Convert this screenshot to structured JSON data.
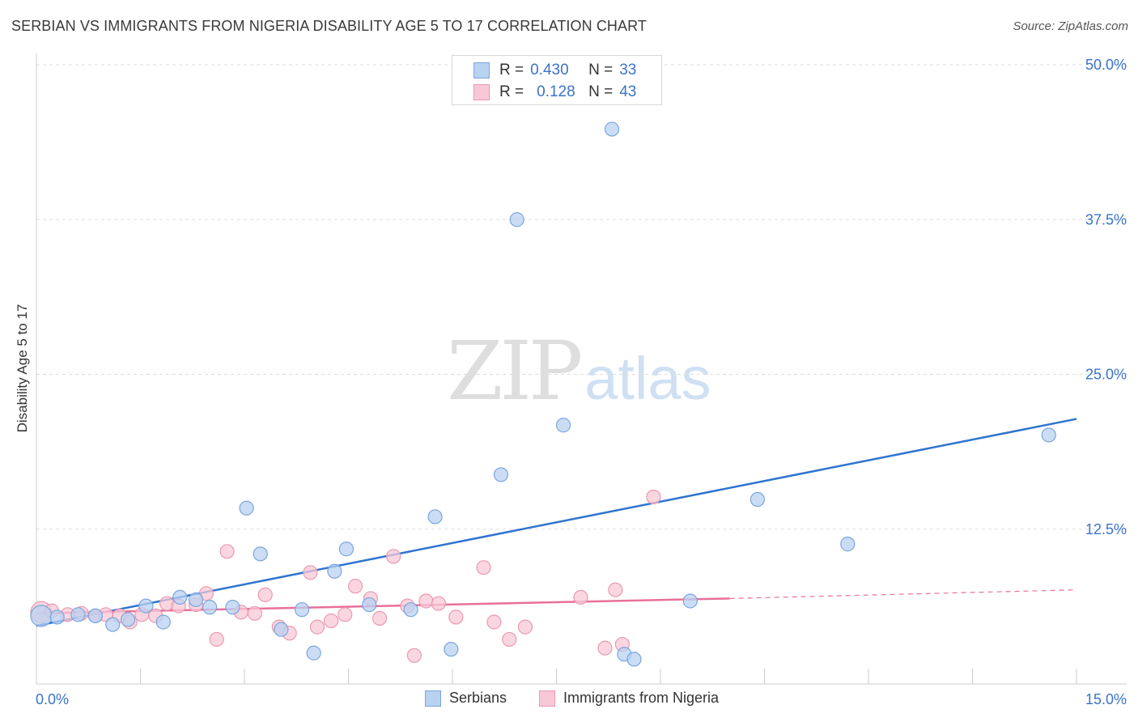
{
  "title": "SERBIAN VS IMMIGRANTS FROM NIGERIA DISABILITY AGE 5 TO 17 CORRELATION CHART",
  "source": "Source: ZipAtlas.com",
  "watermark": {
    "part1": "ZIP",
    "part2": "atlas"
  },
  "legend_top": [
    {
      "r_label": "R =",
      "r_value": "0.430",
      "n_label": "N =",
      "n_value": "33"
    },
    {
      "r_label": "R =",
      "r_value": "0.128",
      "n_label": "N =",
      "n_value": "43"
    }
  ],
  "colors": {
    "serbians_fill": "#b9d2f2",
    "serbians_stroke": "#7aa6de",
    "serbians_line": "#2f74d0",
    "nigeria_fill": "#f8c8d6",
    "nigeria_stroke": "#ea9ab2",
    "nigeria_line": "#e8709a",
    "axis_value": "#3a73c9"
  },
  "chart_data": {
    "type": "scatter",
    "title": "SERBIAN VS IMMIGRANTS FROM NIGERIA DISABILITY AGE 5 TO 17 CORRELATION CHART",
    "xlabel": "",
    "ylabel": "Disability Age 5 to 17",
    "xlim": [
      0,
      15
    ],
    "ylim": [
      0,
      50
    ],
    "x_tick_labels": [
      "0.0%",
      "15.0%"
    ],
    "y_tick_labels": [
      "12.5%",
      "25.0%",
      "37.5%",
      "50.0%"
    ],
    "y_tick_values": [
      12.5,
      25.0,
      37.5,
      50.0
    ],
    "legend_position": "bottom",
    "series": [
      {
        "name": "Serbians",
        "points": [
          [
            0.07,
            5.5
          ],
          [
            0.3,
            5.4
          ],
          [
            0.6,
            5.6
          ],
          [
            0.85,
            5.5
          ],
          [
            1.1,
            4.8
          ],
          [
            1.32,
            5.2
          ],
          [
            1.58,
            6.3
          ],
          [
            1.83,
            5.0
          ],
          [
            2.07,
            7.0
          ],
          [
            2.3,
            6.8
          ],
          [
            2.5,
            6.2
          ],
          [
            2.83,
            6.2
          ],
          [
            3.03,
            14.2
          ],
          [
            3.23,
            10.5
          ],
          [
            3.53,
            4.4
          ],
          [
            3.83,
            6.0
          ],
          [
            4.0,
            2.5
          ],
          [
            4.3,
            9.1
          ],
          [
            4.47,
            10.9
          ],
          [
            4.8,
            6.4
          ],
          [
            5.4,
            6.0
          ],
          [
            5.75,
            13.5
          ],
          [
            5.98,
            2.8
          ],
          [
            6.7,
            16.9
          ],
          [
            6.93,
            37.5
          ],
          [
            7.6,
            20.9
          ],
          [
            8.3,
            44.8
          ],
          [
            8.48,
            2.4
          ],
          [
            8.62,
            2.0
          ],
          [
            9.43,
            6.7
          ],
          [
            10.4,
            14.9
          ],
          [
            11.7,
            11.3
          ],
          [
            14.6,
            20.1
          ]
        ],
        "trend": {
          "x": [
            0.0,
            15.0
          ],
          "y": [
            4.7,
            21.4
          ]
        }
      },
      {
        "name": "Immigrants from Nigeria",
        "points": [
          [
            0.07,
            5.8
          ],
          [
            0.22,
            5.9
          ],
          [
            0.45,
            5.6
          ],
          [
            0.65,
            5.7
          ],
          [
            0.85,
            5.5
          ],
          [
            1.0,
            5.6
          ],
          [
            1.2,
            5.5
          ],
          [
            1.35,
            5.0
          ],
          [
            1.52,
            5.6
          ],
          [
            1.72,
            5.5
          ],
          [
            1.88,
            6.5
          ],
          [
            2.05,
            6.3
          ],
          [
            2.3,
            6.4
          ],
          [
            2.45,
            7.3
          ],
          [
            2.6,
            3.6
          ],
          [
            2.75,
            10.7
          ],
          [
            2.95,
            5.8
          ],
          [
            3.15,
            5.7
          ],
          [
            3.3,
            7.2
          ],
          [
            3.5,
            4.6
          ],
          [
            3.65,
            4.1
          ],
          [
            3.95,
            9.0
          ],
          [
            4.05,
            4.6
          ],
          [
            4.25,
            5.1
          ],
          [
            4.45,
            5.6
          ],
          [
            4.6,
            7.9
          ],
          [
            4.82,
            6.9
          ],
          [
            4.95,
            5.3
          ],
          [
            5.15,
            10.3
          ],
          [
            5.35,
            6.3
          ],
          [
            5.45,
            2.3
          ],
          [
            5.62,
            6.7
          ],
          [
            5.8,
            6.5
          ],
          [
            6.05,
            5.4
          ],
          [
            6.45,
            9.4
          ],
          [
            6.6,
            5.0
          ],
          [
            6.82,
            3.6
          ],
          [
            7.05,
            4.6
          ],
          [
            7.85,
            7.0
          ],
          [
            8.2,
            2.9
          ],
          [
            8.35,
            7.6
          ],
          [
            8.45,
            3.2
          ],
          [
            8.9,
            15.1
          ]
        ],
        "trend": {
          "x": [
            0.0,
            10.0
          ],
          "y": [
            5.7,
            6.9
          ]
        },
        "trend_dashed": {
          "x": [
            10.0,
            15.0
          ],
          "y": [
            6.9,
            7.6
          ]
        }
      }
    ]
  }
}
